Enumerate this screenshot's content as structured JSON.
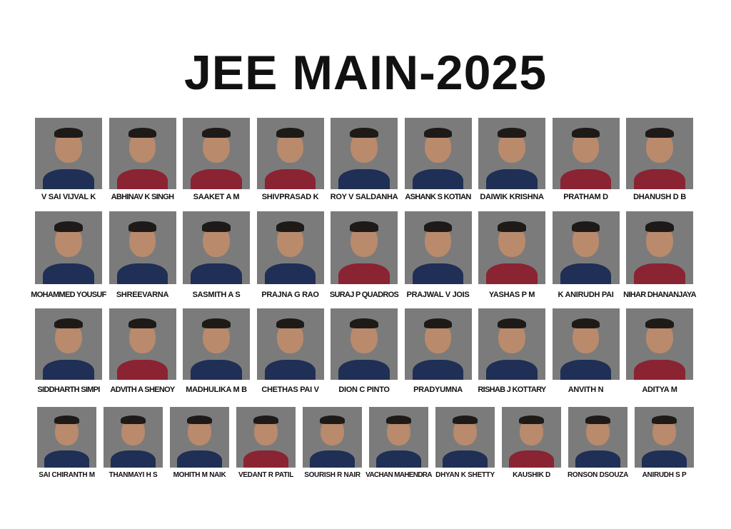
{
  "title": "JEE MAIN-2025",
  "colors": {
    "navy": "#1f2f55",
    "maroon": "#8a2332",
    "background": "#7b7b7b"
  },
  "rows": [
    {
      "students": [
        {
          "name": "V SAI VIJVAL K",
          "shirt": "navy"
        },
        {
          "name": "ABHINAV K SINGH",
          "shirt": "maroon"
        },
        {
          "name": "SAAKET A M",
          "shirt": "maroon"
        },
        {
          "name": "SHIVPRASAD K",
          "shirt": "maroon"
        },
        {
          "name": "ROY V SALDANHA",
          "shirt": "navy"
        },
        {
          "name": "ASHANK S KOTIAN",
          "shirt": "navy"
        },
        {
          "name": "DAIWIK KRISHNA",
          "shirt": "navy"
        },
        {
          "name": "PRATHAM D",
          "shirt": "maroon"
        },
        {
          "name": "DHANUSH D B",
          "shirt": "maroon"
        }
      ]
    },
    {
      "students": [
        {
          "name": "MOHAMMED YOUSUF",
          "shirt": "navy"
        },
        {
          "name": "SHREEVARNA",
          "shirt": "navy"
        },
        {
          "name": "SASMITH A S",
          "shirt": "navy"
        },
        {
          "name": "PRAJNA G RAO",
          "shirt": "navy"
        },
        {
          "name": "SURAJ P QUADROS",
          "shirt": "maroon"
        },
        {
          "name": "PRAJWAL V JOIS",
          "shirt": "navy"
        },
        {
          "name": "YASHAS P M",
          "shirt": "maroon"
        },
        {
          "name": "K ANIRUDH PAI",
          "shirt": "navy"
        },
        {
          "name": "NIHAR DHANANJAYA",
          "shirt": "maroon"
        }
      ]
    },
    {
      "students": [
        {
          "name": "SIDDHARTH SIMPI",
          "shirt": "navy"
        },
        {
          "name": "ADVITH A SHENOY",
          "shirt": "maroon"
        },
        {
          "name": "MADHULIKA M B",
          "shirt": "navy"
        },
        {
          "name": "CHETHAS PAI V",
          "shirt": "navy"
        },
        {
          "name": "DION C PINTO",
          "shirt": "navy"
        },
        {
          "name": "PRADYUMNA",
          "shirt": "navy"
        },
        {
          "name": "RISHAB J KOTTARY",
          "shirt": "navy"
        },
        {
          "name": "ANVITH N",
          "shirt": "navy"
        },
        {
          "name": "ADITYA M",
          "shirt": "maroon"
        }
      ]
    },
    {
      "students": [
        {
          "name": "SAI CHIRANTH M",
          "shirt": "navy"
        },
        {
          "name": "THANMAYI H S",
          "shirt": "navy"
        },
        {
          "name": "MOHITH M NAIK",
          "shirt": "navy"
        },
        {
          "name": "VEDANT R PATIL",
          "shirt": "maroon"
        },
        {
          "name": "SOURISH R NAIR",
          "shirt": "navy"
        },
        {
          "name": "VACHAN MAHENDRA",
          "shirt": "navy"
        },
        {
          "name": "DHYAN K SHETTY",
          "shirt": "navy"
        },
        {
          "name": "KAUSHIK D",
          "shirt": "maroon"
        },
        {
          "name": "RONSON DSOUZA",
          "shirt": "navy"
        },
        {
          "name": "ANIRUDH S P",
          "shirt": "navy"
        }
      ]
    }
  ]
}
